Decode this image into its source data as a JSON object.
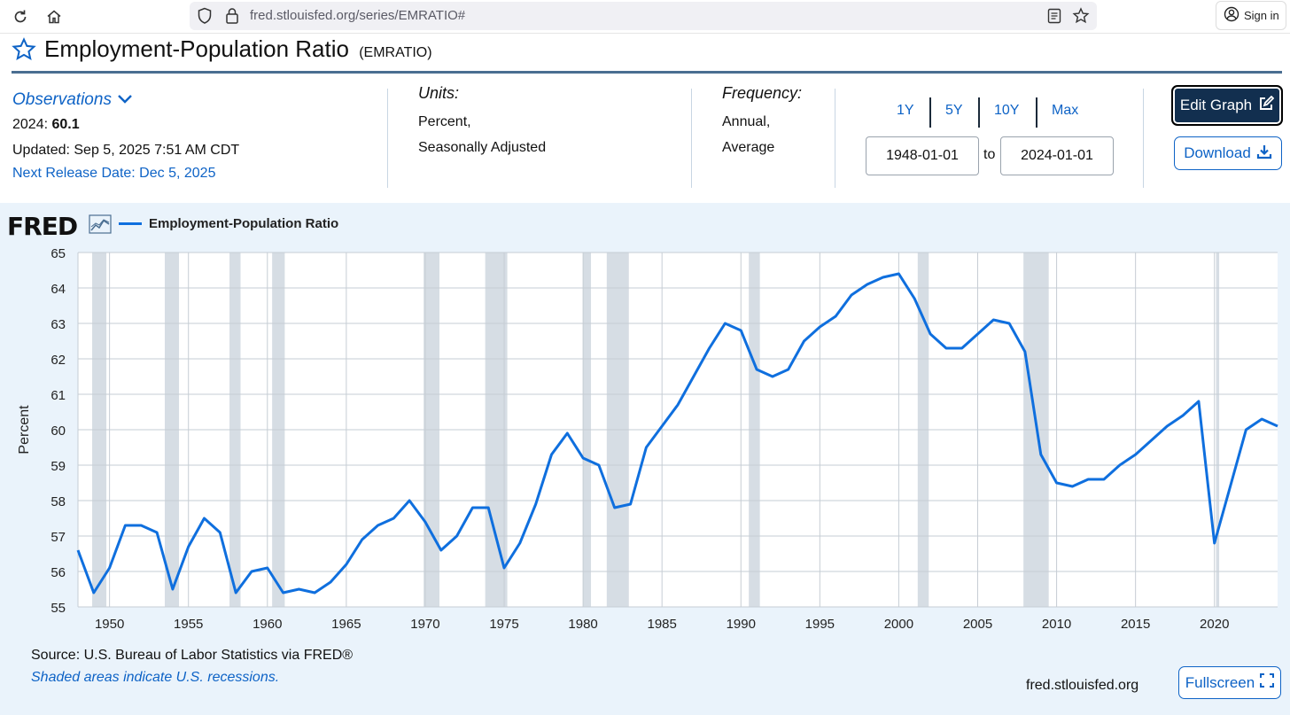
{
  "browser": {
    "url": "fred.stlouisfed.org/series/EMRATIO#",
    "sign_in_label": "Sign in",
    "icons": [
      "reload-icon",
      "home-icon",
      "shield-icon",
      "lock-icon",
      "reader-mode-icon",
      "bookmark-star-icon",
      "account-icon"
    ]
  },
  "header": {
    "title": "Employment-Population Ratio",
    "series_id": "(EMRATIO)"
  },
  "observations": {
    "label": "Observations",
    "latest_period": "2024:",
    "latest_value": "60.1",
    "updated": "Updated: Sep 5, 2025 7:51 AM CDT",
    "next_release": "Next Release Date: Dec 5, 2025"
  },
  "units": {
    "label": "Units:",
    "line1": "Percent,",
    "line2": "Seasonally Adjusted"
  },
  "frequency": {
    "label": "Frequency:",
    "line1": "Annual,",
    "line2": "Average"
  },
  "range": {
    "buttons": [
      "1Y",
      "5Y",
      "10Y",
      "Max"
    ],
    "start": "1948-01-01",
    "to_label": "to",
    "end": "2024-01-01"
  },
  "actions": {
    "edit_graph": "Edit Graph",
    "download": "Download",
    "fullscreen": "Fullscreen"
  },
  "footer": {
    "logo": "FRED",
    "source": "Source: U.S. Bureau of Labor Statistics via FRED®",
    "shaded_note": "Shaded areas indicate U.S. recessions.",
    "site": "fred.stlouisfed.org"
  },
  "colors": {
    "line": "#0f6fde",
    "accent": "#0e63c6",
    "edit_button": "#122f4f",
    "panel": "#eaf3fb",
    "recession": "#d6dde4"
  },
  "chart_data": {
    "type": "line",
    "title": "",
    "xlabel": "",
    "ylabel": "Percent",
    "xlim": [
      1948,
      2024
    ],
    "ylim": [
      55,
      65
    ],
    "y_ticks": [
      55,
      56,
      57,
      58,
      59,
      60,
      61,
      62,
      63,
      64,
      65
    ],
    "x_ticks": [
      1950,
      1955,
      1960,
      1965,
      1970,
      1975,
      1980,
      1985,
      1990,
      1995,
      2000,
      2005,
      2010,
      2015,
      2020
    ],
    "grid": true,
    "legend": "top-left",
    "series": [
      {
        "name": "Employment-Population Ratio",
        "x": [
          1948,
          1949,
          1950,
          1951,
          1952,
          1953,
          1954,
          1955,
          1956,
          1957,
          1958,
          1959,
          1960,
          1961,
          1962,
          1963,
          1964,
          1965,
          1966,
          1967,
          1968,
          1969,
          1970,
          1971,
          1972,
          1973,
          1974,
          1975,
          1976,
          1977,
          1978,
          1979,
          1980,
          1981,
          1982,
          1983,
          1984,
          1985,
          1986,
          1987,
          1988,
          1989,
          1990,
          1991,
          1992,
          1993,
          1994,
          1995,
          1996,
          1997,
          1998,
          1999,
          2000,
          2001,
          2002,
          2003,
          2004,
          2005,
          2006,
          2007,
          2008,
          2009,
          2010,
          2011,
          2012,
          2013,
          2014,
          2015,
          2016,
          2017,
          2018,
          2019,
          2020,
          2021,
          2022,
          2023,
          2024
        ],
        "y": [
          56.6,
          55.4,
          56.1,
          57.3,
          57.3,
          57.1,
          55.5,
          56.7,
          57.5,
          57.1,
          55.4,
          56.0,
          56.1,
          55.4,
          55.5,
          55.4,
          55.7,
          56.2,
          56.9,
          57.3,
          57.5,
          58.0,
          57.4,
          56.6,
          57.0,
          57.8,
          57.8,
          56.1,
          56.8,
          57.9,
          59.3,
          59.9,
          59.2,
          59.0,
          57.8,
          57.9,
          59.5,
          60.1,
          60.7,
          61.5,
          62.3,
          63.0,
          62.8,
          61.7,
          61.5,
          61.7,
          62.5,
          62.9,
          63.2,
          63.8,
          64.1,
          64.3,
          64.4,
          63.7,
          62.7,
          62.3,
          62.3,
          62.7,
          63.1,
          63.0,
          62.2,
          59.3,
          58.5,
          58.4,
          58.6,
          58.6,
          59.0,
          59.3,
          59.7,
          60.1,
          60.4,
          60.8,
          56.8,
          58.4,
          60.0,
          60.3,
          60.1
        ]
      }
    ],
    "recessions": [
      [
        1948.9,
        1949.8
      ],
      [
        1953.5,
        1954.4
      ],
      [
        1957.6,
        1958.3
      ],
      [
        1960.3,
        1961.1
      ],
      [
        1969.9,
        1970.9
      ],
      [
        1973.8,
        1975.2
      ],
      [
        1980.0,
        1980.5
      ],
      [
        1981.5,
        1982.9
      ],
      [
        1990.5,
        1991.2
      ],
      [
        2001.2,
        2001.9
      ],
      [
        2007.9,
        2009.5
      ],
      [
        2020.1,
        2020.3
      ]
    ]
  }
}
